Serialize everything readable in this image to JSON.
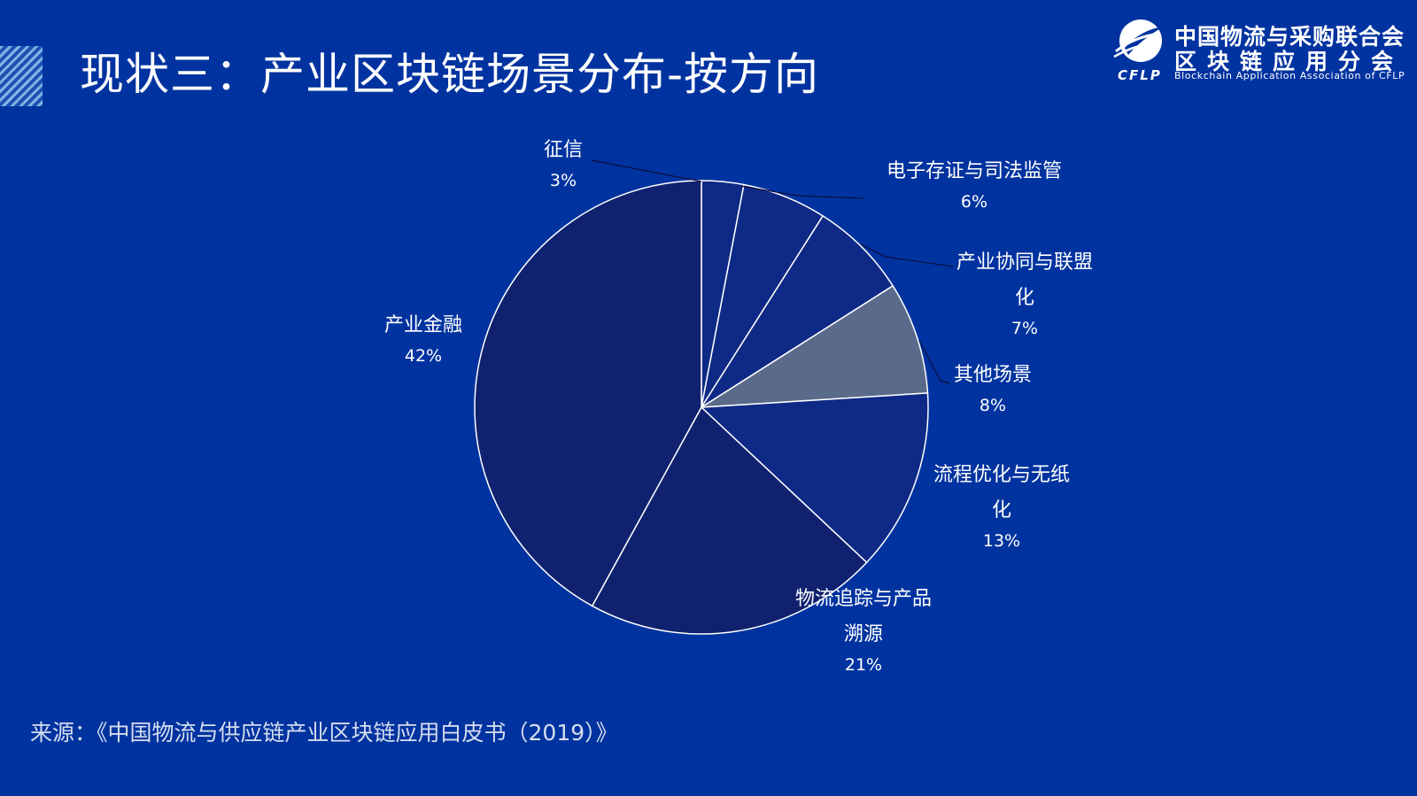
{
  "header": {
    "title": "现状三：产业区块链场景分布-按方向"
  },
  "logo": {
    "icon": "cflp-globe-icon",
    "name_line1": "中国物流与采购联合会",
    "name_line2": "区块链应用分会",
    "english": "Blockchain Application Association of CFLP",
    "abbr": "CFLP"
  },
  "footer": {
    "source": "来源：《中国物流与供应链产业区块链应用白皮书（2019）》"
  },
  "chart_data": {
    "type": "pie",
    "title": "",
    "start": "12-o'clock",
    "direction": "clockwise",
    "slices": [
      {
        "label_lines": [
          "征信"
        ],
        "value": 3,
        "value_label": "3%",
        "color": "#0F2A86"
      },
      {
        "label_lines": [
          "电子存证与司法监管"
        ],
        "value": 6,
        "value_label": "6%",
        "color": "#0F2A86"
      },
      {
        "label_lines": [
          "产业协同与联盟",
          "化"
        ],
        "value": 7,
        "value_label": "7%",
        "color": "#0F2A86"
      },
      {
        "label_lines": [
          "其他场景"
        ],
        "value": 8,
        "value_label": "8%",
        "color": "#5A6A8A"
      },
      {
        "label_lines": [
          "流程优化与无纸",
          "化"
        ],
        "value": 13,
        "value_label": "13%",
        "color": "#0F2A86"
      },
      {
        "label_lines": [
          "物流追踪与产品",
          "溯源"
        ],
        "value": 21,
        "value_label": "21%",
        "color": "#10226F"
      },
      {
        "label_lines": [
          "产业金融"
        ],
        "value": 42,
        "value_label": "42%",
        "color": "#10226F"
      }
    ],
    "legend": "none",
    "colors": {
      "background": "#0033A0",
      "slice_border": "#ffffff",
      "text": "#ffffff"
    }
  }
}
